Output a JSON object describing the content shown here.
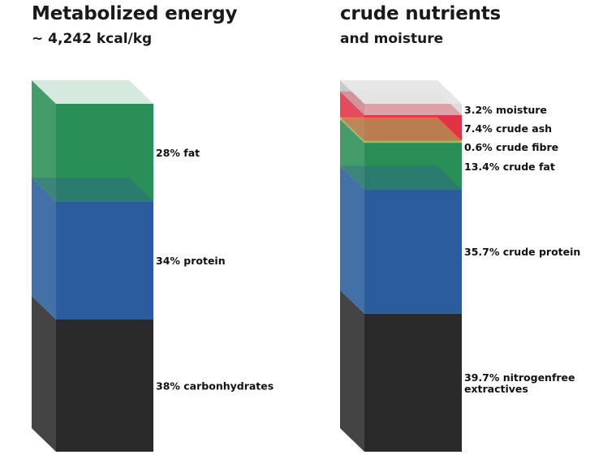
{
  "chart_data": [
    {
      "type": "bar",
      "title": "Metabolized energy",
      "subtitle": "~ 4,242 kcal/kg",
      "unit": "%",
      "series": [
        {
          "name": "carbonhydrates",
          "value": 38,
          "label": "38% carbonhydrates",
          "color": "#2a2a2a"
        },
        {
          "name": "protein",
          "value": 34,
          "label": "34% protein",
          "color": "#2b5c9c"
        },
        {
          "name": "fat",
          "value": 28,
          "label": "28% fat",
          "color": "#2a8f57"
        }
      ]
    },
    {
      "type": "bar",
      "title": "crude nutrients",
      "subtitle": "and moisture",
      "unit": "%",
      "series": [
        {
          "name": "nitrogenfree extractives",
          "value": 39.7,
          "label_lines": [
            "39.7% nitrogenfree",
            "extractives"
          ],
          "color": "#2a2a2a"
        },
        {
          "name": "crude protein",
          "value": 35.7,
          "label_lines": [
            "35.7% crude protein"
          ],
          "color": "#2b5c9c"
        },
        {
          "name": "crude fat",
          "value": 13.4,
          "label_lines": [
            "13.4% crude fat"
          ],
          "color": "#2a8f57"
        },
        {
          "name": "crude fibre",
          "value": 0.6,
          "label_lines": [
            "0.6% crude fibre"
          ],
          "color": "#e8cc5a"
        },
        {
          "name": "crude ash",
          "value": 7.4,
          "label_lines": [
            "7.4% crude ash"
          ],
          "color": "#e03345"
        },
        {
          "name": "moisture",
          "value": 3.2,
          "label_lines": [
            "3.2% moisture"
          ],
          "color": "#dcdcdc"
        }
      ]
    }
  ]
}
